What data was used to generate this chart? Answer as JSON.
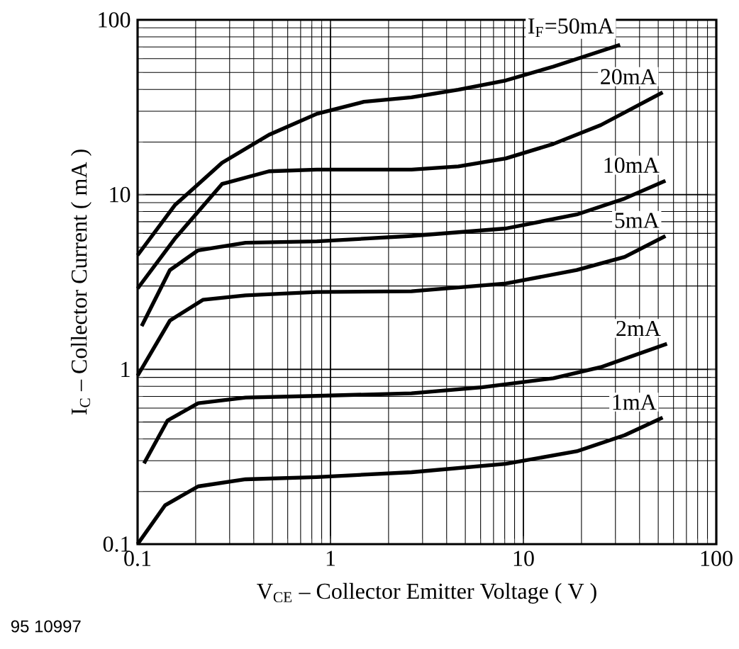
{
  "chart_data": {
    "type": "line",
    "xlabel": "V$_{CE}$ – Collector Emitter Voltage ( V )",
    "ylabel": "I$_{C}$ – Collector Current ( mA )",
    "annotations": [
      "95 10997"
    ],
    "log": "xy",
    "grid": true,
    "legend": false,
    "marker": "none",
    "line_style": "solid",
    "xlim": [
      0.1,
      100
    ],
    "ylim": [
      0.1,
      100
    ],
    "xticks": [
      0.1,
      1,
      10,
      100
    ],
    "yticks": [
      0.1,
      1,
      10,
      100
    ],
    "series": [
      {
        "name": "I$_{F}$=50mA",
        "color": "#000000",
        "x": [
          0.1,
          0.156,
          0.274,
          0.48,
          0.85,
          1.49,
          2.63,
          4.6,
          8.1,
          14.3,
          31.7
        ],
        "values": [
          4.5,
          8.7,
          15.2,
          22,
          29,
          34,
          36,
          39.8,
          45,
          54,
          72
        ]
      },
      {
        "name": "20mA",
        "color": "#000000",
        "x": [
          0.1,
          0.156,
          0.274,
          0.48,
          0.85,
          2.63,
          4.6,
          8.1,
          14.3,
          25.2,
          52.7
        ],
        "values": [
          2.9,
          5.6,
          11.5,
          13.6,
          13.9,
          13.9,
          14.5,
          16.1,
          19.5,
          25,
          38.5
        ]
      },
      {
        "name": "10mA",
        "color": "#000000",
        "x": [
          0.105,
          0.147,
          0.206,
          0.363,
          0.85,
          2.63,
          8.1,
          18.9,
          33.5,
          54.5
        ],
        "values": [
          1.77,
          3.7,
          4.8,
          5.3,
          5.4,
          5.8,
          6.4,
          7.7,
          9.5,
          12
        ]
      },
      {
        "name": "5mA",
        "color": "#000000",
        "x": [
          0.1,
          0.147,
          0.218,
          0.363,
          0.85,
          2.63,
          8.1,
          18.9,
          33.5,
          54.5
        ],
        "values": [
          0.92,
          1.9,
          2.5,
          2.65,
          2.77,
          2.8,
          3.1,
          3.7,
          4.4,
          5.8
        ]
      },
      {
        "name": "2mA",
        "color": "#000000",
        "x": [
          0.108,
          0.143,
          0.206,
          0.363,
          0.85,
          2.63,
          6.1,
          14.3,
          25.2,
          55.5
        ],
        "values": [
          0.29,
          0.51,
          0.64,
          0.69,
          0.705,
          0.73,
          0.79,
          0.89,
          1.03,
          1.4
        ]
      },
      {
        "name": "1mA",
        "color": "#000000",
        "x": [
          0.1,
          0.139,
          0.206,
          0.363,
          0.85,
          2.63,
          8.1,
          18.9,
          33.5,
          52.7
        ],
        "values": [
          0.1,
          0.167,
          0.214,
          0.235,
          0.242,
          0.258,
          0.288,
          0.34,
          0.42,
          0.53
        ]
      }
    ]
  }
}
